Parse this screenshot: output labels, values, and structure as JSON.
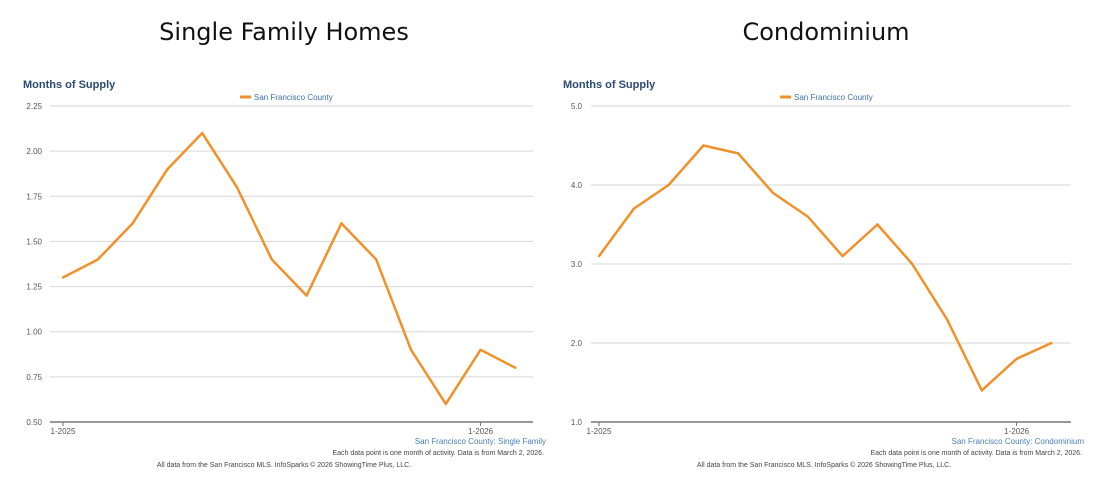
{
  "panels": {
    "left_title": "Single Family Homes",
    "right_title": "Condominium"
  },
  "chart_data": [
    {
      "type": "line",
      "panel_title": "Single Family Homes",
      "title": "Months of Supply",
      "legend": [
        "San Francisco County"
      ],
      "legend_position": "top-center",
      "x": [
        "1-2025",
        "2-2025",
        "3-2025",
        "4-2025",
        "5-2025",
        "6-2025",
        "7-2025",
        "8-2025",
        "9-2025",
        "10-2025",
        "11-2025",
        "12-2025",
        "1-2026",
        "2-2026"
      ],
      "x_tick_labels": [
        "1-2025",
        "1-2026"
      ],
      "series": [
        {
          "name": "San Francisco County",
          "color": "#f0912a",
          "values": [
            1.3,
            1.4,
            1.6,
            1.9,
            2.1,
            1.8,
            1.4,
            1.2,
            1.6,
            1.4,
            0.9,
            0.6,
            0.9,
            0.8
          ]
        }
      ],
      "y_ticks": [
        "0.50",
        "0.75",
        "1.00",
        "1.25",
        "1.50",
        "1.75",
        "2.00",
        "2.25"
      ],
      "ylim": [
        0.5,
        2.25
      ],
      "grid": true,
      "xlabel": "",
      "ylabel": "",
      "series_caption": "San Francisco County: Single Family",
      "note": "Each data point is one month of activity. Data is from March 2, 2026.",
      "source": "All data from the San Francisco MLS. InfoSparks © 2026 ShowingTime Plus, LLC."
    },
    {
      "type": "line",
      "panel_title": "Condominium",
      "title": "Months of Supply",
      "legend": [
        "San Francisco County"
      ],
      "legend_position": "top-center",
      "x": [
        "1-2025",
        "2-2025",
        "3-2025",
        "4-2025",
        "5-2025",
        "6-2025",
        "7-2025",
        "8-2025",
        "9-2025",
        "10-2025",
        "11-2025",
        "12-2025",
        "1-2026",
        "2-2026"
      ],
      "x_tick_labels": [
        "1-2025",
        "1-2026"
      ],
      "series": [
        {
          "name": "San Francisco County",
          "color": "#f0912a",
          "values": [
            3.1,
            3.7,
            4.0,
            4.5,
            4.4,
            3.9,
            3.6,
            3.1,
            3.5,
            3.0,
            2.3,
            1.4,
            1.8,
            2.0
          ]
        }
      ],
      "y_ticks": [
        "1.0",
        "2.0",
        "3.0",
        "4.0",
        "5.0"
      ],
      "ylim": [
        1.0,
        5.0
      ],
      "grid": true,
      "xlabel": "",
      "ylabel": "",
      "series_caption": "San Francisco County: Condominium",
      "note": "Each data point is one month of activity. Data is from March 2, 2026.",
      "source": "All data from the San Francisco MLS. InfoSparks © 2026 ShowingTime Plus, LLC."
    }
  ]
}
